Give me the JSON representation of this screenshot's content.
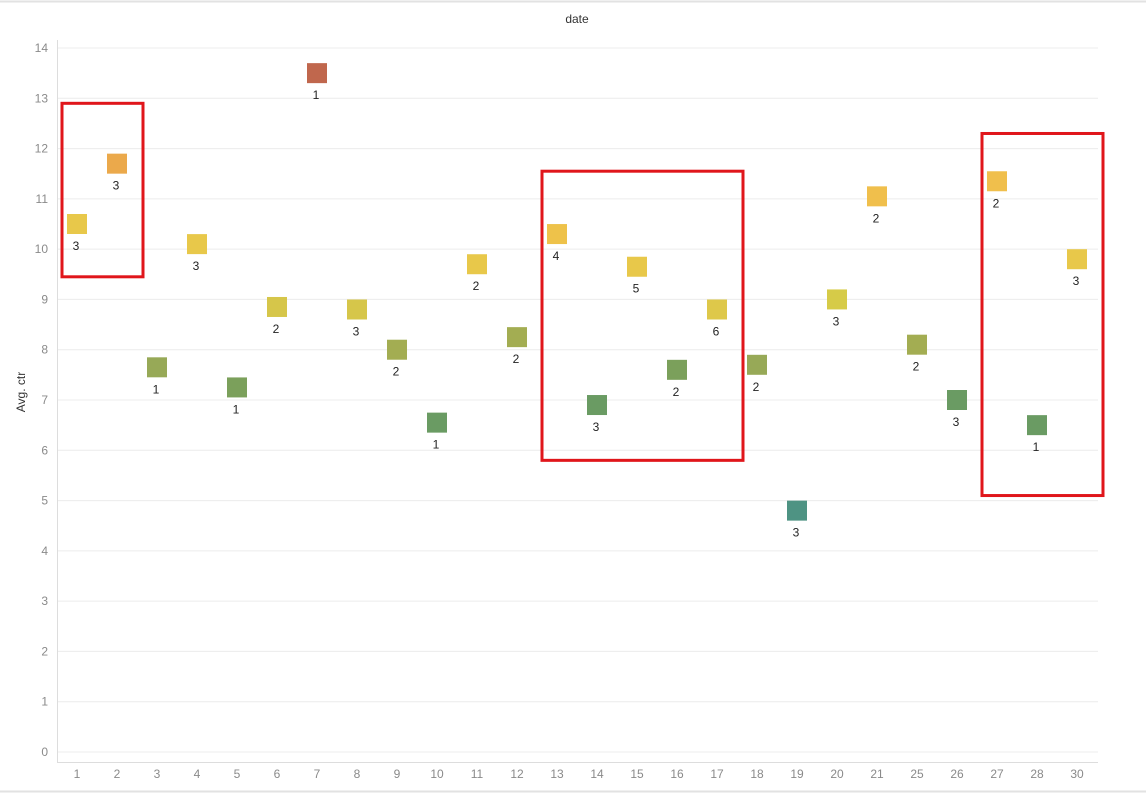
{
  "chart_data": {
    "type": "scatter",
    "title": "date",
    "xlabel": "",
    "ylabel": "Avg. ctr",
    "categories": [
      "1",
      "2",
      "3",
      "4",
      "5",
      "6",
      "7",
      "8",
      "9",
      "10",
      "11",
      "12",
      "13",
      "14",
      "15",
      "16",
      "17",
      "18",
      "19",
      "20",
      "21",
      "25",
      "26",
      "27",
      "28",
      "30"
    ],
    "values": [
      10.5,
      11.7,
      7.65,
      10.1,
      7.25,
      8.85,
      13.5,
      8.8,
      8.0,
      6.55,
      9.7,
      8.25,
      10.3,
      6.9,
      9.65,
      7.6,
      8.8,
      7.7,
      4.8,
      9.0,
      11.05,
      8.1,
      7.0,
      11.35,
      6.5,
      9.8
    ],
    "counts": [
      3,
      3,
      1,
      3,
      1,
      2,
      1,
      3,
      2,
      1,
      2,
      2,
      4,
      3,
      5,
      2,
      6,
      2,
      3,
      3,
      2,
      2,
      3,
      2,
      1,
      3
    ],
    "colors": [
      "#e8c84a",
      "#eba94b",
      "#97a957",
      "#e8c84a",
      "#7ba05b",
      "#d6c64a",
      "#c0674d",
      "#d6c64a",
      "#a3ad52",
      "#6a9b63",
      "#e8c84a",
      "#a3ad52",
      "#eec24a",
      "#6a9b63",
      "#e8c84a",
      "#7ba05b",
      "#dec84a",
      "#97a957",
      "#4e9383",
      "#d6cb48",
      "#f0bf4c",
      "#a3ad52",
      "#6a9b63",
      "#f0bf4c",
      "#6a9b63",
      "#e8c84a"
    ],
    "ylim": [
      0,
      14
    ],
    "yticks": [
      0,
      1,
      2,
      3,
      4,
      5,
      6,
      7,
      8,
      9,
      10,
      11,
      12,
      13,
      14
    ],
    "grid": true,
    "legend": "none",
    "highlight_color": "#e0161b",
    "highlights": [
      {
        "categories": [
          "1",
          "2"
        ],
        "y_range": [
          9.45,
          12.9
        ]
      },
      {
        "categories": [
          "13",
          "17"
        ],
        "y_range": [
          5.8,
          11.55
        ]
      },
      {
        "categories": [
          "27",
          "30"
        ],
        "y_range": [
          5.1,
          12.3
        ]
      }
    ]
  }
}
